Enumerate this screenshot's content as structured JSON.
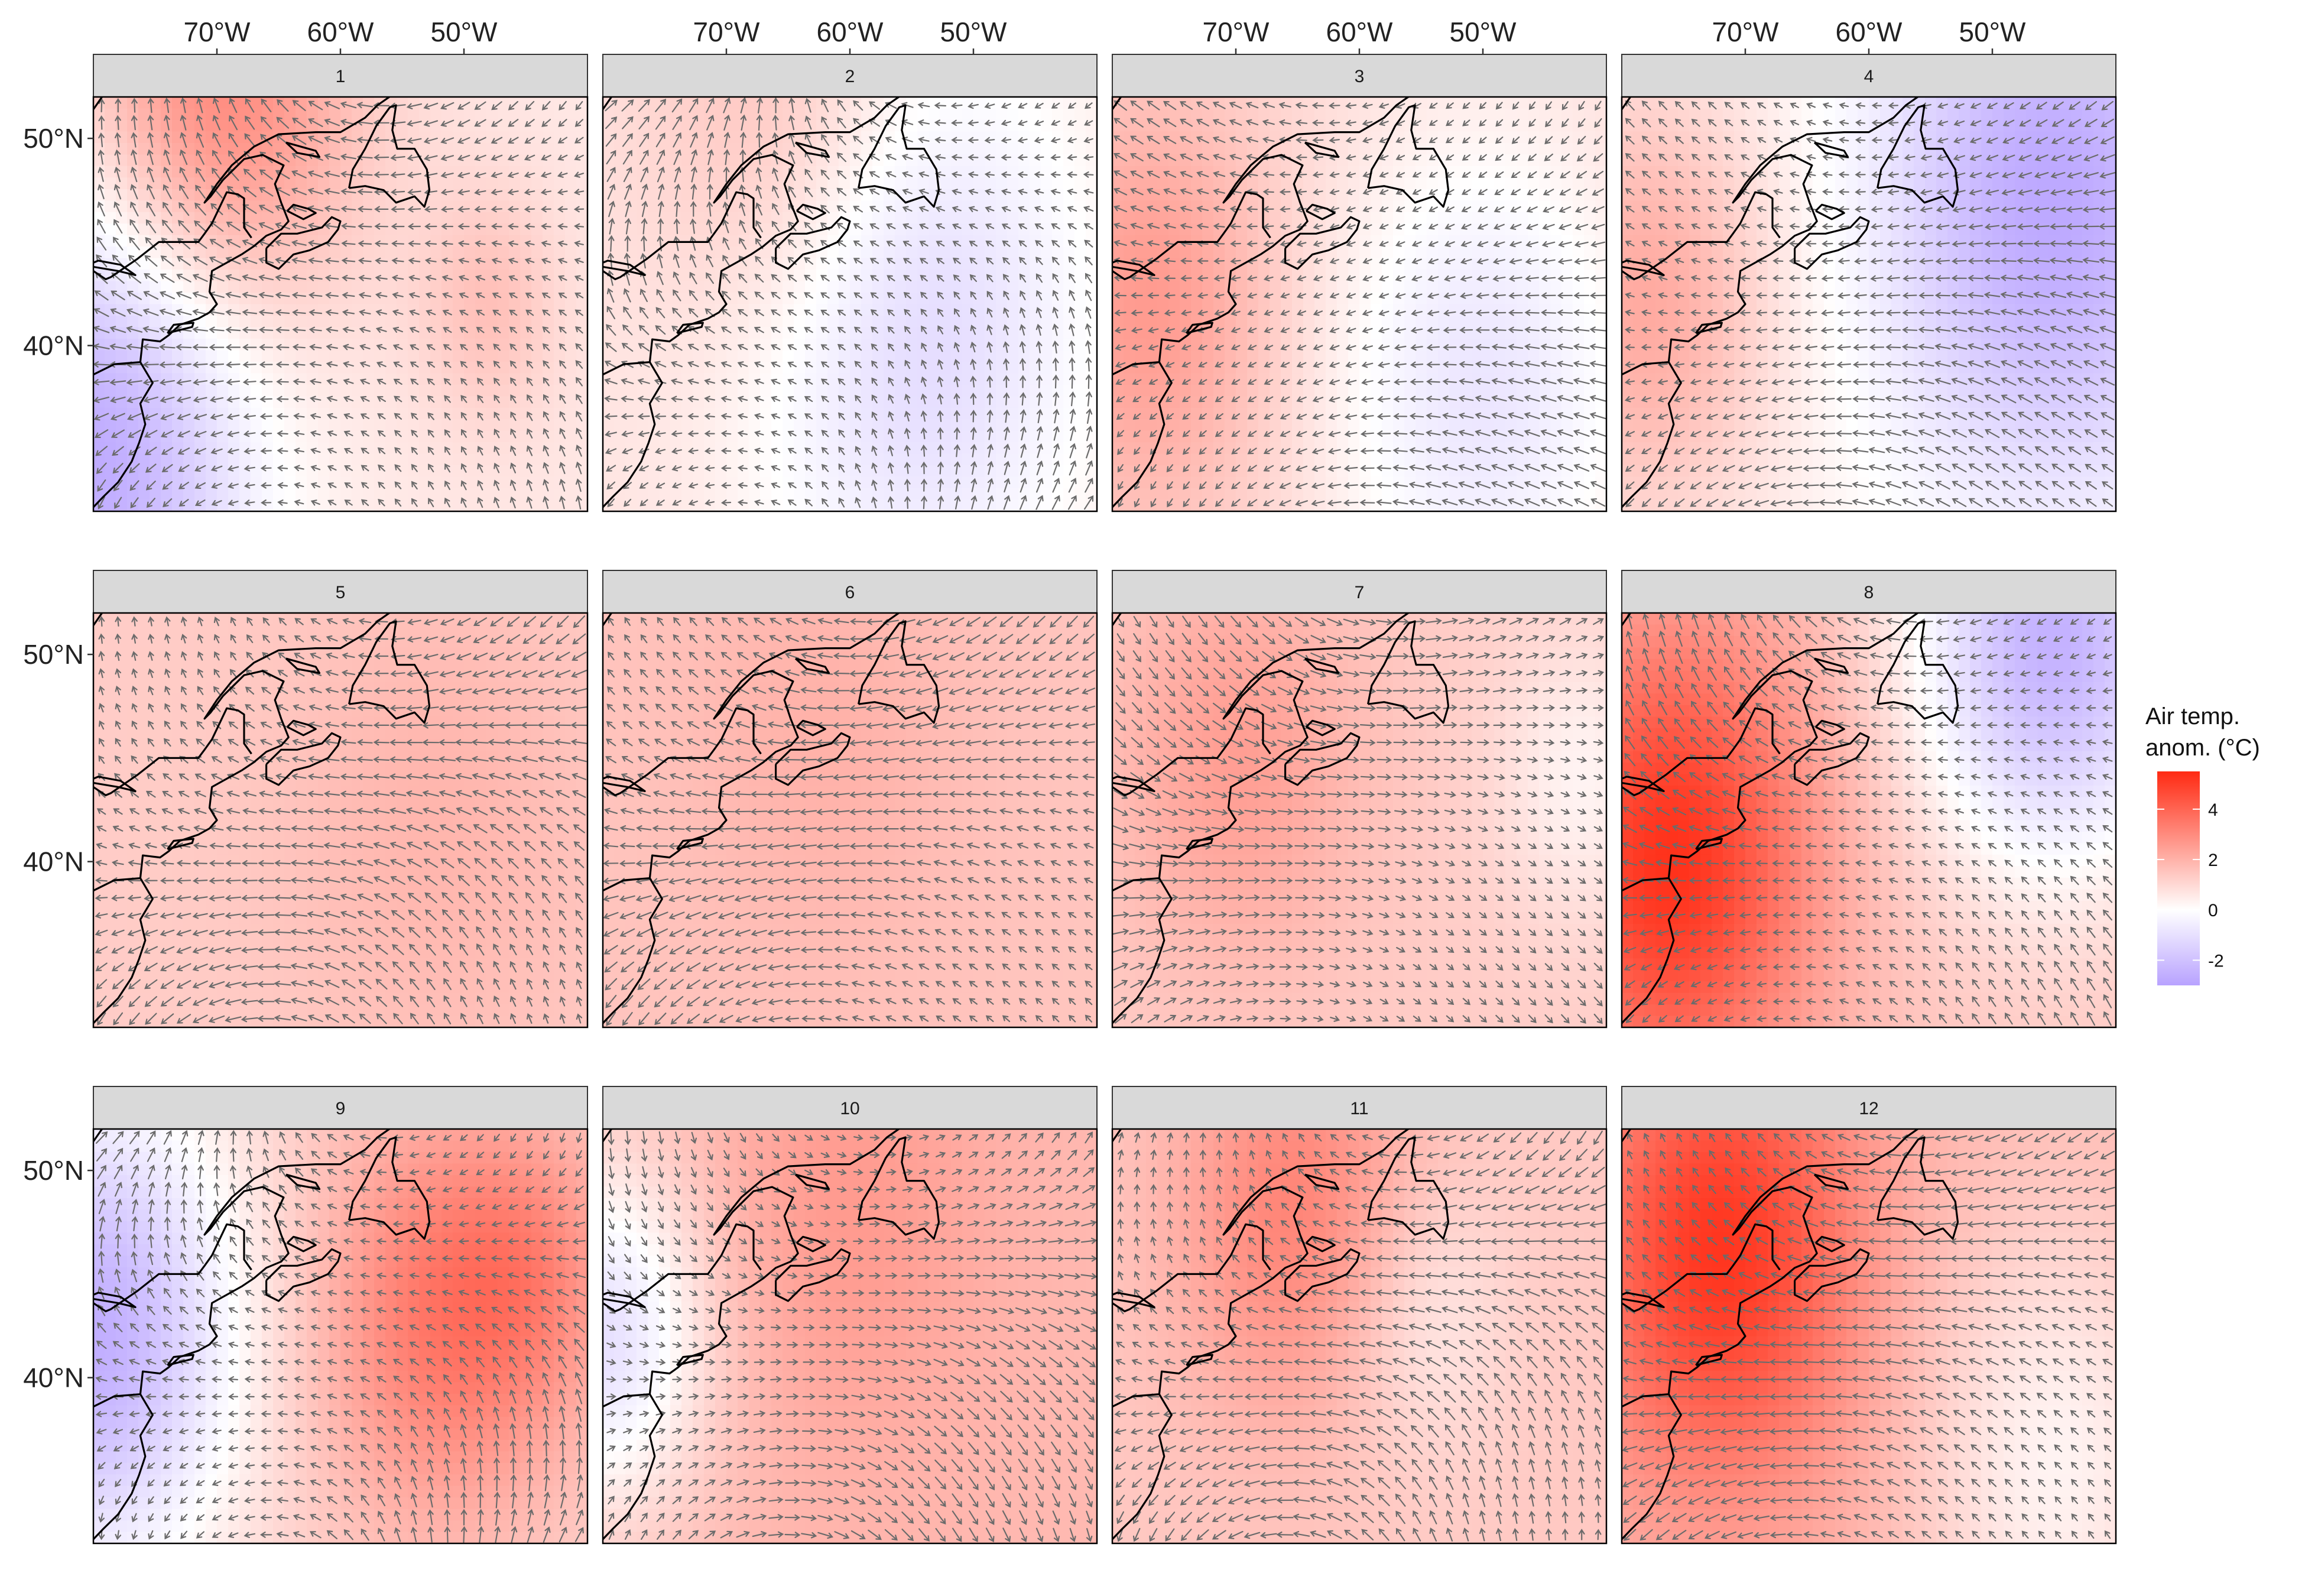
{
  "chart_data": {
    "type": "faceted-map",
    "description_fields": {
      "fill_variable": "Air temp. anomaly",
      "arrow_variable": "wind vector"
    },
    "legend": {
      "title_line1": "Air temp.",
      "title_line2": "anom. (°C)",
      "ticks": [
        4,
        2,
        0,
        -2
      ],
      "tick_labels": [
        "4",
        "2",
        "0",
        "-2"
      ],
      "range": [
        -3.0,
        5.5
      ],
      "colors": {
        "low": "#b8a2ff",
        "mid": "#ffffff",
        "high": "#ff2a12"
      },
      "placement": "right"
    },
    "axes": {
      "lon_range": [
        -80,
        -40
      ],
      "lat_range": [
        32,
        52
      ],
      "x_ticks": [
        -70,
        -60,
        -50
      ],
      "x_tick_labels": [
        "70°W",
        "60°W",
        "50°W"
      ],
      "y_ticks": [
        40,
        50
      ],
      "y_tick_labels": [
        "40°N",
        "50°N"
      ],
      "x_axis_position": "top",
      "y_axis_position": "left"
    },
    "grid": false,
    "panels": [
      {
        "label": "1",
        "base": 0.6,
        "blobs": [
          {
            "lon": -70,
            "lat": 52,
            "amp": 2.6,
            "r": 8
          },
          {
            "lon": -80,
            "lat": 35,
            "amp": -3.4,
            "r": 9
          },
          {
            "lon": -48,
            "lat": 42,
            "amp": 1.0,
            "r": 4
          }
        ],
        "wind": {
          "theta": 200,
          "curl": 2.6,
          "var": 0.25
        }
      },
      {
        "label": "2",
        "base": 0.7,
        "blobs": [
          {
            "lon": -55,
            "lat": 41,
            "amp": -2.0,
            "r": 10
          },
          {
            "lon": -65,
            "lat": 50,
            "amp": 1.2,
            "r": 8
          }
        ],
        "wind": {
          "theta": 230,
          "curl": 3.2,
          "var": 0.3
        }
      },
      {
        "label": "3",
        "base": 1.0,
        "blobs": [
          {
            "lon": -77,
            "lat": 42,
            "amp": 1.6,
            "r": 7
          },
          {
            "lon": -50,
            "lat": 38,
            "amp": -1.8,
            "r": 9
          }
        ],
        "wind": {
          "theta": 170,
          "curl": 1.7,
          "var": 0.2
        }
      },
      {
        "label": "4",
        "base": 0.4,
        "blobs": [
          {
            "lon": -45,
            "lat": 47,
            "amp": -3.2,
            "r": 10
          },
          {
            "lon": -78,
            "lat": 42,
            "amp": 1.8,
            "r": 7
          }
        ],
        "wind": {
          "theta": 185,
          "curl": 1.5,
          "var": 0.2
        }
      },
      {
        "label": "5",
        "base": 1.3,
        "blobs": [
          {
            "lon": -52,
            "lat": 42,
            "amp": 0.6,
            "r": 9
          }
        ],
        "wind": {
          "theta": 200,
          "curl": 2.4,
          "var": 0.25
        }
      },
      {
        "label": "6",
        "base": 1.5,
        "blobs": [
          {
            "lon": -62,
            "lat": 46,
            "amp": 0.5,
            "r": 8
          }
        ],
        "wind": {
          "theta": 185,
          "curl": 1.9,
          "var": 0.2
        }
      },
      {
        "label": "7",
        "base": 1.3,
        "blobs": [
          {
            "lon": -70,
            "lat": 45,
            "amp": 1.2,
            "r": 7
          },
          {
            "lon": -42,
            "lat": 44,
            "amp": -1.0,
            "r": 5
          }
        ],
        "wind": {
          "theta": 15,
          "curl": 1.6,
          "var": 0.2
        }
      },
      {
        "label": "8",
        "base": 1.5,
        "blobs": [
          {
            "lon": -76,
            "lat": 40,
            "amp": 3.8,
            "r": 8
          },
          {
            "lon": -45,
            "lat": 51,
            "amp": -4.0,
            "r": 8
          }
        ],
        "wind": {
          "theta": 200,
          "curl": 2.0,
          "var": 0.25
        }
      },
      {
        "label": "9",
        "base": 1.2,
        "blobs": [
          {
            "lon": -52,
            "lat": 43,
            "amp": 2.2,
            "r": 7
          },
          {
            "lon": -80,
            "lat": 42,
            "amp": -3.8,
            "r": 8
          },
          {
            "lon": -44,
            "lat": 45,
            "amp": 1.2,
            "r": 5
          }
        ],
        "wind": {
          "theta": 210,
          "curl": 3.8,
          "var": 0.3
        }
      },
      {
        "label": "10",
        "base": 1.8,
        "blobs": [
          {
            "lon": -80,
            "lat": 42,
            "amp": -2.8,
            "r": 6
          },
          {
            "lon": -60,
            "lat": 48,
            "amp": 0.8,
            "r": 8
          }
        ],
        "wind": {
          "theta": 15,
          "curl": 2.6,
          "var": 0.25
        }
      },
      {
        "label": "11",
        "base": 1.4,
        "blobs": [
          {
            "lon": -65,
            "lat": 48,
            "amp": 1.8,
            "r": 7
          },
          {
            "lon": -55,
            "lat": 43,
            "amp": -1.0,
            "r": 5
          }
        ],
        "wind": {
          "theta": 205,
          "curl": 3.0,
          "var": 0.3
        }
      },
      {
        "label": "12",
        "base": 1.8,
        "blobs": [
          {
            "lon": -72,
            "lat": 46,
            "amp": 3.4,
            "r": 8
          },
          {
            "lon": -45,
            "lat": 36,
            "amp": -1.5,
            "r": 8
          }
        ],
        "wind": {
          "theta": 195,
          "curl": 1.8,
          "var": 0.2
        }
      }
    ],
    "coastline": [
      [
        [
          -80,
          38.6
        ],
        [
          -78.3,
          39.1
        ],
        [
          -76.2,
          39.2
        ],
        [
          -75.2,
          38.2
        ],
        [
          -76.2,
          37.2
        ],
        [
          -75.8,
          36.2
        ],
        [
          -76.3,
          35.3
        ],
        [
          -76.9,
          34.4
        ],
        [
          -78.0,
          33.4
        ],
        [
          -79.2,
          32.7
        ],
        [
          -80,
          32.2
        ]
      ],
      [
        [
          -76.2,
          39.2
        ],
        [
          -76.0,
          40.3
        ],
        [
          -74.6,
          40.2
        ],
        [
          -73.9,
          40.5
        ],
        [
          -73.0,
          41.0
        ],
        [
          -71.5,
          41.3
        ],
        [
          -70.6,
          41.6
        ],
        [
          -70.0,
          42.0
        ],
        [
          -70.6,
          42.6
        ],
        [
          -70.4,
          43.6
        ],
        [
          -69.2,
          44.0
        ],
        [
          -68.0,
          44.4
        ],
        [
          -67.0,
          44.8
        ],
        [
          -66.0,
          45.3
        ],
        [
          -64.8,
          45.6
        ],
        [
          -64.2,
          46.0
        ],
        [
          -64.8,
          46.9
        ],
        [
          -65.3,
          47.8
        ],
        [
          -64.6,
          48.7
        ],
        [
          -66.3,
          49.2
        ],
        [
          -67.8,
          49.0
        ],
        [
          -69.5,
          48.0
        ],
        [
          -70.5,
          47.2
        ],
        [
          -71.0,
          46.9
        ],
        [
          -70.0,
          47.8
        ],
        [
          -68.8,
          48.7
        ],
        [
          -67.0,
          49.6
        ],
        [
          -65.0,
          50.2
        ],
        [
          -62.0,
          50.3
        ],
        [
          -60.0,
          50.3
        ],
        [
          -58.0,
          51.0
        ],
        [
          -57.0,
          51.6
        ],
        [
          -55.8,
          52.1
        ],
        [
          -55.8,
          52.5
        ]
      ],
      [
        [
          -66.0,
          44.7
        ],
        [
          -64.8,
          45.4
        ],
        [
          -63.5,
          45.4
        ],
        [
          -61.5,
          45.7
        ],
        [
          -60.7,
          46.2
        ],
        [
          -60.0,
          46.0
        ],
        [
          -60.2,
          45.6
        ],
        [
          -61.0,
          45.0
        ],
        [
          -62.5,
          44.6
        ],
        [
          -63.8,
          44.4
        ],
        [
          -65.0,
          43.7
        ],
        [
          -66.0,
          44.0
        ],
        [
          -66.0,
          44.7
        ]
      ],
      [
        [
          -64.3,
          46.5
        ],
        [
          -63.0,
          46.1
        ],
        [
          -62.0,
          46.4
        ],
        [
          -62.6,
          46.6
        ],
        [
          -63.8,
          46.8
        ],
        [
          -64.3,
          46.5
        ]
      ],
      [
        [
          -59.3,
          47.6
        ],
        [
          -59.0,
          48.5
        ],
        [
          -58.0,
          49.5
        ],
        [
          -57.1,
          50.6
        ],
        [
          -56.0,
          51.5
        ],
        [
          -55.5,
          51.6
        ],
        [
          -55.8,
          50.4
        ],
        [
          -55.4,
          49.5
        ],
        [
          -54.0,
          49.5
        ],
        [
          -53.0,
          48.5
        ],
        [
          -52.8,
          47.5
        ],
        [
          -53.2,
          46.7
        ],
        [
          -54.0,
          47.2
        ],
        [
          -55.5,
          46.9
        ],
        [
          -56.5,
          47.5
        ],
        [
          -58.0,
          47.7
        ],
        [
          -59.3,
          47.6
        ]
      ],
      [
        [
          -64.4,
          49.8
        ],
        [
          -62.0,
          49.4
        ],
        [
          -61.7,
          49.1
        ],
        [
          -63.5,
          49.3
        ],
        [
          -64.4,
          49.8
        ]
      ],
      [
        [
          -74.0,
          40.6
        ],
        [
          -72.0,
          40.9
        ],
        [
          -71.9,
          41.1
        ],
        [
          -73.5,
          41.0
        ],
        [
          -74.0,
          40.6
        ]
      ],
      [
        [
          -80,
          43.8
        ],
        [
          -78.0,
          43.6
        ],
        [
          -76.6,
          43.4
        ],
        [
          -77.8,
          43.9
        ],
        [
          -79.6,
          44.1
        ],
        [
          -80,
          44.0
        ]
      ]
    ],
    "political_lines": [
      [
        [
          -80,
          43.6
        ],
        [
          -79.0,
          43.2
        ],
        [
          -78.6,
          43.3
        ],
        [
          -76.4,
          44.2
        ],
        [
          -74.7,
          45.0
        ],
        [
          -71.5,
          45.0
        ],
        [
          -71.0,
          45.4
        ],
        [
          -70.4,
          45.9
        ],
        [
          -69.2,
          47.4
        ],
        [
          -68.3,
          47.3
        ],
        [
          -67.8,
          47.1
        ],
        [
          -67.8,
          45.7
        ],
        [
          -67.2,
          45.2
        ]
      ],
      [
        [
          -80,
          51.4
        ],
        [
          -79.3,
          52.0
        ],
        [
          -78.7,
          52.5
        ]
      ]
    ]
  }
}
